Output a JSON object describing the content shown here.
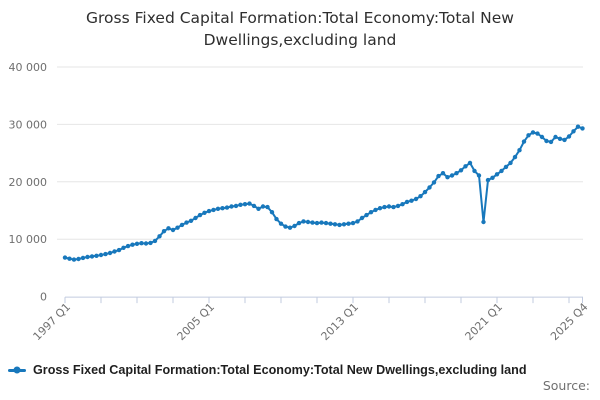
{
  "title": {
    "line1": "Gross Fixed Capital Formation:Total Economy:Total New",
    "line2": "Dwellings,excluding land"
  },
  "legend": {
    "label": "Gross Fixed Capital Formation:Total Economy:Total New Dwellings,excluding land"
  },
  "source": {
    "label": "Source:"
  },
  "colors": {
    "line": "#1878bc",
    "grid": "#e6e6e6",
    "axis": "#c2cbdf",
    "tick_text": "#6f6f6f",
    "title_text": "#2e2e2e",
    "legend_text": "#1f1f1f",
    "source_text": "#707070"
  },
  "chart_data": {
    "type": "line",
    "title": "Gross Fixed Capital Formation:Total Economy:Total New Dwellings,excluding land",
    "x_start": "1997 Q1",
    "x_end": "2025 Q4",
    "frequency": "quarterly",
    "ylim": [
      0,
      40000
    ],
    "grid": "horizontal",
    "legend_position": "bottom-left",
    "y_ticks": [
      {
        "value": 0,
        "label": "0"
      },
      {
        "value": 10000,
        "label": "10 000"
      },
      {
        "value": 20000,
        "label": "20 000"
      },
      {
        "value": 30000,
        "label": "30 000"
      },
      {
        "value": 40000,
        "label": "40 000"
      }
    ],
    "x_major_ticks": [
      {
        "index": 0,
        "label": "1997 Q1"
      },
      {
        "index": 32,
        "label": "2005 Q1"
      },
      {
        "index": 64,
        "label": "2013 Q1"
      },
      {
        "index": 96,
        "label": "2021 Q1"
      },
      {
        "index": 115,
        "label": "2025 Q4"
      }
    ],
    "x_minor_tick_indices": [
      0,
      8,
      16,
      24,
      32,
      40,
      48,
      56,
      64,
      72,
      80,
      88,
      96,
      104,
      112,
      115
    ],
    "series": [
      {
        "name": "Gross Fixed Capital Formation:Total Economy:Total New Dwellings,excluding land",
        "values": [
          6800,
          6600,
          6450,
          6550,
          6750,
          6900,
          7000,
          7100,
          7250,
          7400,
          7600,
          7850,
          8100,
          8500,
          8800,
          9050,
          9200,
          9300,
          9250,
          9350,
          9700,
          10500,
          11400,
          11900,
          11600,
          12000,
          12500,
          12900,
          13200,
          13700,
          14200,
          14600,
          14900,
          15100,
          15300,
          15400,
          15500,
          15700,
          15800,
          16000,
          16100,
          16200,
          15800,
          15300,
          15700,
          15600,
          14700,
          13500,
          12700,
          12200,
          12000,
          12300,
          12800,
          13100,
          13000,
          12900,
          12800,
          12900,
          12800,
          12700,
          12600,
          12500,
          12600,
          12700,
          12800,
          13100,
          13700,
          14200,
          14700,
          15100,
          15400,
          15600,
          15700,
          15600,
          15800,
          16100,
          16500,
          16700,
          17000,
          17500,
          18200,
          19000,
          19900,
          21000,
          21500,
          20800,
          21100,
          21500,
          22000,
          22700,
          23300,
          21900,
          21100,
          13000,
          20300,
          20700,
          21300,
          21900,
          22600,
          23300,
          24300,
          25500,
          27000,
          28100,
          28600,
          28400,
          27800,
          27100,
          26950,
          27800,
          27500,
          27300,
          27900,
          28800,
          29600,
          29300
        ]
      }
    ]
  }
}
